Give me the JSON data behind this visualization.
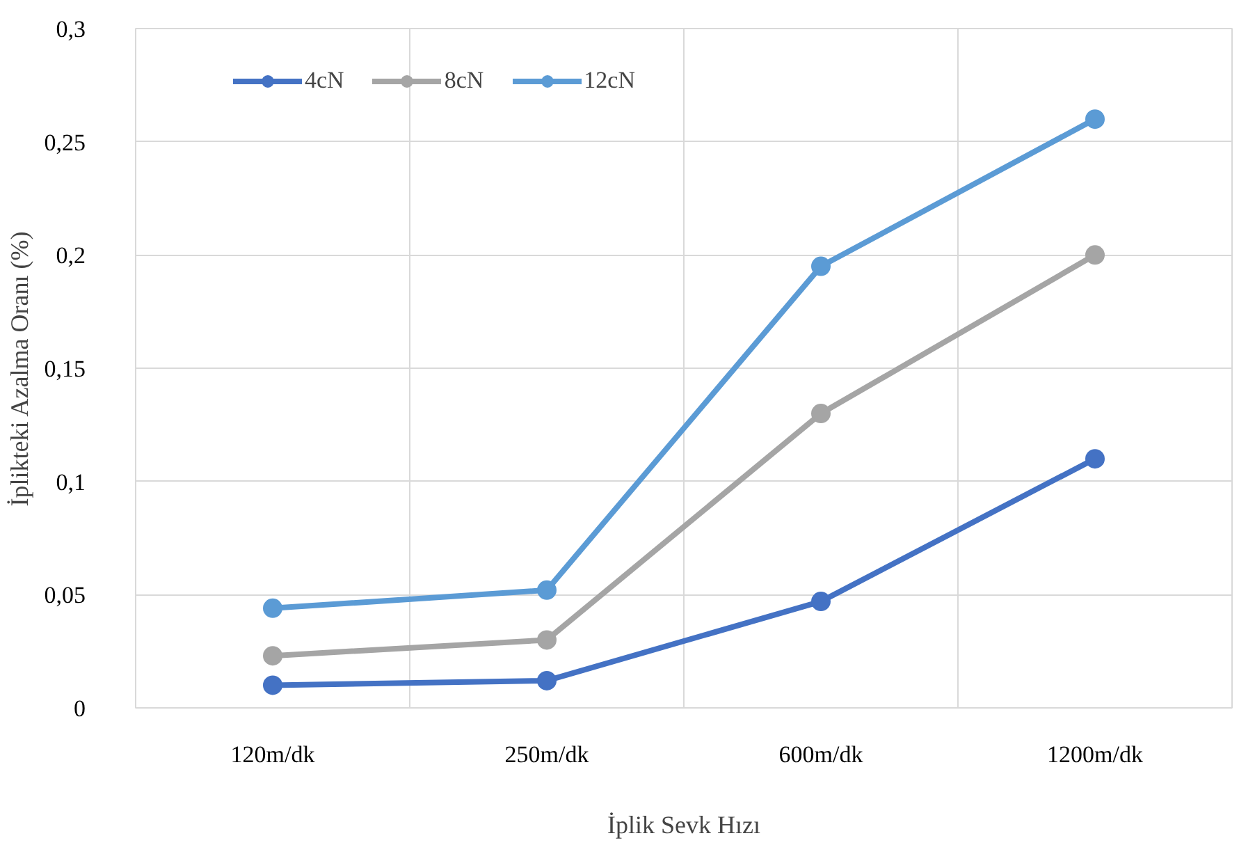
{
  "chart_data": {
    "type": "line",
    "xlabel": "İplik Sevk Hızı",
    "ylabel": "İplikteki Azalma Oranı (%)",
    "categories": [
      "120m/dk",
      "250m/dk",
      "600m/dk",
      "1200m/dk"
    ],
    "series": [
      {
        "name": "4cN",
        "color": "#4472c4",
        "values": [
          0.01,
          0.012,
          0.047,
          0.11
        ]
      },
      {
        "name": "8cN",
        "color": "#a5a5a5",
        "values": [
          0.023,
          0.03,
          0.13,
          0.2
        ]
      },
      {
        "name": "12cN",
        "color": "#5b9bd5",
        "values": [
          0.044,
          0.052,
          0.195,
          0.26
        ]
      }
    ],
    "ylim": [
      0,
      0.3
    ],
    "yticks": [
      0,
      {
        "value": 0.05,
        "label": "0,05"
      },
      {
        "value": 0.1,
        "label": "0,1"
      },
      {
        "value": 0.15,
        "label": "0,15"
      },
      {
        "value": 0.2,
        "label": "0,2"
      },
      {
        "value": 0.25,
        "label": "0,25"
      },
      {
        "value": 0.3,
        "label": "0,3"
      }
    ],
    "grid": true,
    "legend": "top left",
    "marker": "circle",
    "line_style": "solid"
  }
}
